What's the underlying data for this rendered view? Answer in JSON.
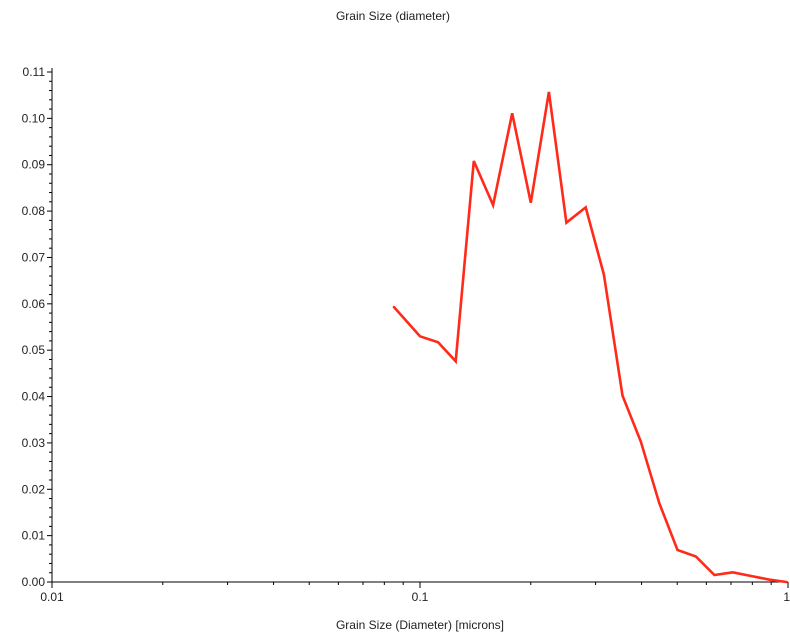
{
  "chart_data": {
    "type": "line",
    "title": "Grain Size (diameter)",
    "xlabel": "Grain Size (Diameter) [microns]",
    "ylabel": "",
    "x_scale": "log",
    "xlim": [
      0.01,
      1
    ],
    "ylim": [
      0.0,
      0.11
    ],
    "x_ticks": [
      "0.01",
      "0.1",
      "1"
    ],
    "y_ticks": [
      "0.00",
      "0.01",
      "0.02",
      "0.03",
      "0.04",
      "0.05",
      "0.06",
      "0.07",
      "0.08",
      "0.09",
      "0.10",
      "0.11"
    ],
    "grid": false,
    "series": [
      {
        "color": "#ff2a1a",
        "x": [
          0.085,
          0.1,
          0.112,
          0.125,
          0.14,
          0.158,
          0.178,
          0.2,
          0.224,
          0.25,
          0.282,
          0.316,
          0.355,
          0.398,
          0.447,
          0.501,
          0.562,
          0.631,
          0.708,
          0.794,
          0.891,
          0.99
        ],
        "y": [
          0.0593,
          0.053,
          0.0517,
          0.0476,
          0.0908,
          0.0813,
          0.1011,
          0.0818,
          0.1057,
          0.0775,
          0.0808,
          0.0663,
          0.0402,
          0.0303,
          0.017,
          0.0069,
          0.0055,
          0.0015,
          0.0021,
          0.0013,
          0.0005,
          0.0
        ]
      }
    ]
  }
}
